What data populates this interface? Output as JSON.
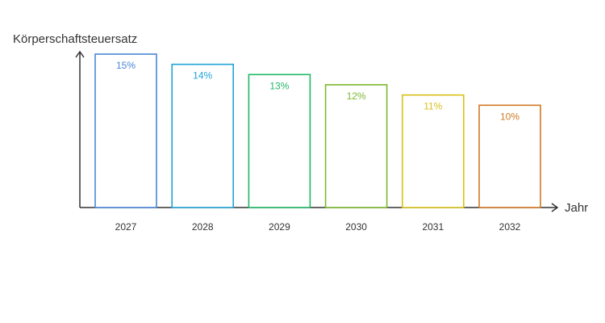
{
  "chart_data": {
    "type": "bar",
    "categories": [
      "2027",
      "2028",
      "2029",
      "2030",
      "2031",
      "2032"
    ],
    "values": [
      15,
      14,
      13,
      12,
      11,
      10
    ],
    "value_labels": [
      "15%",
      "14%",
      "13%",
      "12%",
      "11%",
      "10%"
    ],
    "colors": [
      "#4a86d8",
      "#1fa3d6",
      "#20b866",
      "#7cb82e",
      "#d9c11a",
      "#d07a24"
    ],
    "xlabel": "Jahr",
    "ylabel": "Körperschaftsteuersatz",
    "ylim": [
      0,
      15
    ],
    "grid": false,
    "bar_style": "outline"
  }
}
